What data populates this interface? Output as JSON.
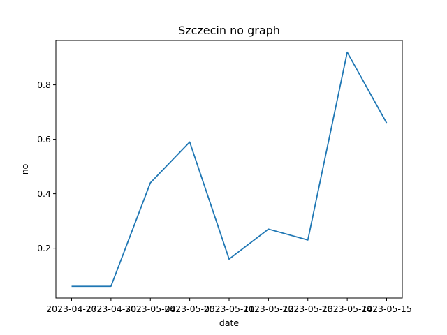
{
  "chart_data": {
    "type": "line",
    "title": "Szczecin no graph",
    "xlabel": "date",
    "ylabel": "no",
    "x": [
      "2023-04-27",
      "2023-04-30",
      "2023-05-04",
      "2023-05-05",
      "2023-05-11",
      "2023-05-12",
      "2023-05-13",
      "2023-05-14",
      "2023-05-15"
    ],
    "series": [
      {
        "values": [
          0.06,
          0.06,
          0.44,
          0.59,
          0.16,
          0.27,
          0.23,
          0.92,
          0.66
        ],
        "color": "#1f77b4"
      }
    ],
    "yticks": [
      "0.2",
      "0.4",
      "0.6",
      "0.8"
    ],
    "yticks_values": [
      0.2,
      0.4,
      0.6,
      0.8
    ],
    "ylim": [
      0.017,
      0.963
    ],
    "grid": false,
    "legend": "none"
  }
}
